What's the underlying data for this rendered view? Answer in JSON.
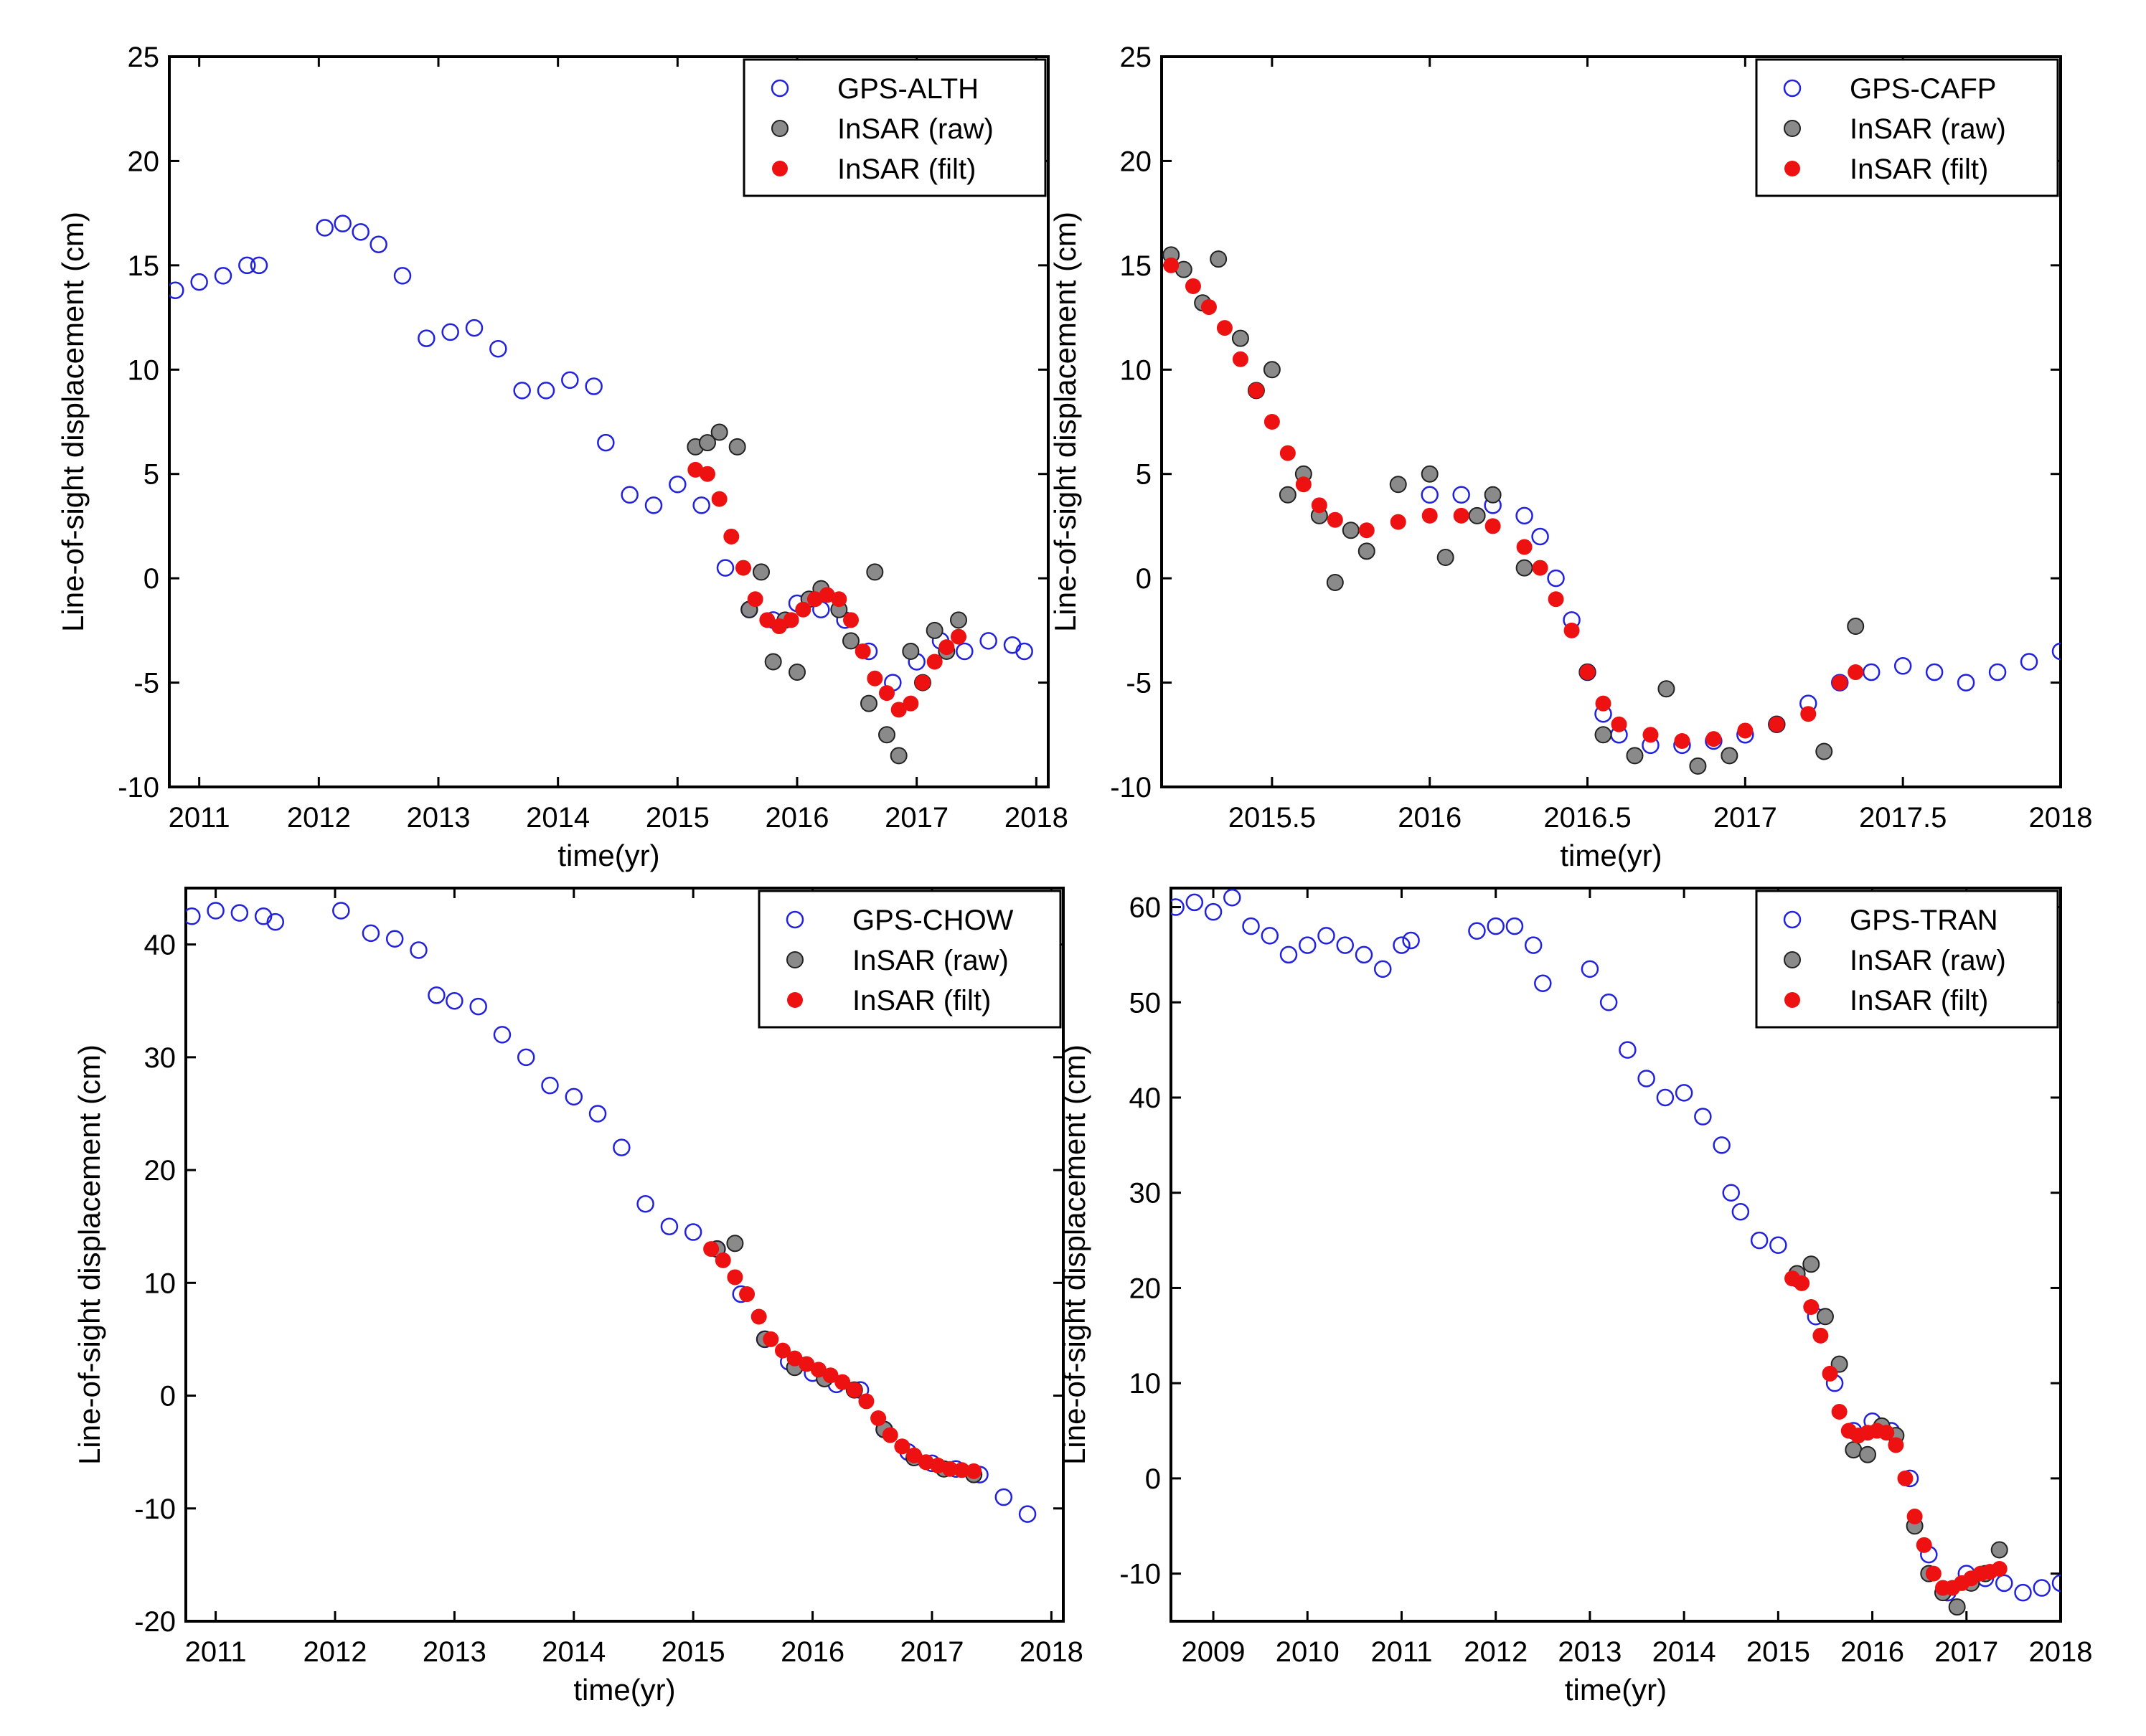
{
  "figure": {
    "colors": {
      "gps": "#2222dd",
      "raw_fill": "#8a8a8a",
      "raw_stroke": "#222222",
      "filt": "#ee1111",
      "axis": "#000000"
    }
  },
  "chart_data": [
    {
      "type": "scatter",
      "xlabel": "time(yr)",
      "ylabel": "Line-of-sight displacement (cm)",
      "xlim": [
        2010.75,
        2018.1
      ],
      "ylim": [
        -10,
        25
      ],
      "xticks": [
        2011,
        2012,
        2013,
        2014,
        2015,
        2016,
        2017,
        2018
      ],
      "yticks": [
        -10,
        -5,
        0,
        5,
        10,
        15,
        20,
        25
      ],
      "legend_position": "top-right",
      "series": [
        {
          "name": "GPS-ALTH",
          "marker": "open-circle",
          "color": "#2222dd",
          "x": [
            2010.8,
            2011.0,
            2011.2,
            2011.4,
            2011.5,
            2012.05,
            2012.2,
            2012.35,
            2012.5,
            2012.7,
            2012.9,
            2013.1,
            2013.3,
            2013.5,
            2013.7,
            2013.9,
            2014.1,
            2014.3,
            2014.4,
            2014.6,
            2014.8,
            2015.0,
            2015.2,
            2015.4,
            2015.6,
            2015.8,
            2016.0,
            2016.2,
            2016.4,
            2016.6,
            2016.8,
            2017.0,
            2017.2,
            2017.4,
            2017.6,
            2017.8,
            2017.9
          ],
          "y": [
            13.8,
            14.2,
            14.5,
            15.0,
            15.0,
            16.8,
            17.0,
            16.6,
            16.0,
            14.5,
            11.5,
            11.8,
            12.0,
            11.0,
            9.0,
            9.0,
            9.5,
            9.2,
            6.5,
            4.0,
            3.5,
            4.5,
            3.5,
            0.5,
            -1.5,
            -2.0,
            -1.2,
            -1.5,
            -2.0,
            -3.5,
            -5.0,
            -4.0,
            -3.0,
            -3.5,
            -3.0,
            -3.2,
            -3.5
          ]
        },
        {
          "name": "InSAR (raw)",
          "marker": "filled-circle",
          "color": "#8a8a8a",
          "x": [
            2015.15,
            2015.25,
            2015.35,
            2015.5,
            2015.6,
            2015.7,
            2015.8,
            2015.9,
            2016.0,
            2016.1,
            2016.2,
            2016.35,
            2016.45,
            2016.6,
            2016.65,
            2016.75,
            2016.85,
            2016.95,
            2017.05,
            2017.15,
            2017.25,
            2017.35
          ],
          "y": [
            6.3,
            6.5,
            7.0,
            6.3,
            -1.5,
            0.3,
            -4.0,
            -2.0,
            -4.5,
            -1.0,
            -0.5,
            -1.5,
            -3.0,
            -6.0,
            0.3,
            -7.5,
            -8.5,
            -3.5,
            -5.0,
            -2.5,
            -3.5,
            -2.0
          ]
        },
        {
          "name": "InSAR (filt)",
          "marker": "filled-circle",
          "color": "#ee1111",
          "x": [
            2015.15,
            2015.25,
            2015.35,
            2015.45,
            2015.55,
            2015.65,
            2015.75,
            2015.85,
            2015.95,
            2016.05,
            2016.15,
            2016.25,
            2016.35,
            2016.45,
            2016.55,
            2016.65,
            2016.75,
            2016.85,
            2016.95,
            2017.05,
            2017.15,
            2017.25,
            2017.35
          ],
          "y": [
            5.2,
            5.0,
            3.8,
            2.0,
            0.5,
            -1.0,
            -2.0,
            -2.3,
            -2.0,
            -1.5,
            -1.0,
            -0.8,
            -1.0,
            -2.0,
            -3.5,
            -4.8,
            -5.5,
            -6.3,
            -6.0,
            -5.0,
            -4.0,
            -3.3,
            -2.8
          ]
        }
      ]
    },
    {
      "type": "scatter",
      "xlabel": "time(yr)",
      "ylabel": "Line-of-sight displacement (cm)",
      "xlim": [
        2015.15,
        2018.0
      ],
      "ylim": [
        -10,
        25
      ],
      "xticks": [
        2015.5,
        2016,
        2016.5,
        2017,
        2017.5,
        2018
      ],
      "yticks": [
        -10,
        -5,
        0,
        5,
        10,
        15,
        20,
        25
      ],
      "legend_position": "top-right",
      "series": [
        {
          "name": "GPS-CAFP",
          "marker": "open-circle",
          "color": "#2222dd",
          "x": [
            2016.0,
            2016.1,
            2016.2,
            2016.3,
            2016.35,
            2016.4,
            2016.45,
            2016.5,
            2016.55,
            2016.6,
            2016.7,
            2016.8,
            2016.9,
            2017.0,
            2017.1,
            2017.2,
            2017.3,
            2017.4,
            2017.5,
            2017.6,
            2017.7,
            2017.8,
            2017.9,
            2018.0
          ],
          "y": [
            4.0,
            4.0,
            3.5,
            3.0,
            2.0,
            0.0,
            -2.0,
            -4.5,
            -6.5,
            -7.5,
            -8.0,
            -8.0,
            -7.8,
            -7.5,
            -7.0,
            -6.0,
            -5.0,
            -4.5,
            -4.2,
            -4.5,
            -5.0,
            -4.5,
            -4.0,
            -3.5
          ]
        },
        {
          "name": "InSAR (raw)",
          "marker": "filled-circle",
          "color": "#8a8a8a",
          "x": [
            2015.18,
            2015.22,
            2015.28,
            2015.33,
            2015.4,
            2015.45,
            2015.5,
            2015.55,
            2015.6,
            2015.65,
            2015.7,
            2015.75,
            2015.8,
            2015.9,
            2016.0,
            2016.05,
            2016.15,
            2016.2,
            2016.3,
            2016.5,
            2016.55,
            2016.65,
            2016.75,
            2016.85,
            2016.95,
            2017.1,
            2017.25,
            2017.35
          ],
          "y": [
            15.5,
            14.8,
            13.2,
            15.3,
            11.5,
            9.0,
            10.0,
            4.0,
            5.0,
            3.0,
            -0.2,
            2.3,
            1.3,
            4.5,
            5.0,
            1.0,
            3.0,
            4.0,
            0.5,
            -4.5,
            -7.5,
            -8.5,
            -5.3,
            -9.0,
            -8.5,
            -7.0,
            -8.3,
            -2.3
          ]
        },
        {
          "name": "InSAR (filt)",
          "marker": "filled-circle",
          "color": "#ee1111",
          "x": [
            2015.18,
            2015.25,
            2015.3,
            2015.35,
            2015.4,
            2015.45,
            2015.5,
            2015.55,
            2015.6,
            2015.65,
            2015.7,
            2015.8,
            2015.9,
            2016.0,
            2016.1,
            2016.2,
            2016.3,
            2016.35,
            2016.4,
            2016.45,
            2016.5,
            2016.55,
            2016.6,
            2016.7,
            2016.8,
            2016.9,
            2017.0,
            2017.1,
            2017.2,
            2017.3,
            2017.35
          ],
          "y": [
            15.0,
            14.0,
            13.0,
            12.0,
            10.5,
            9.0,
            7.5,
            6.0,
            4.5,
            3.5,
            2.8,
            2.3,
            2.7,
            3.0,
            3.0,
            2.5,
            1.5,
            0.5,
            -1.0,
            -2.5,
            -4.5,
            -6.0,
            -7.0,
            -7.5,
            -7.8,
            -7.7,
            -7.3,
            -7.0,
            -6.5,
            -5.0,
            -4.5
          ]
        }
      ]
    },
    {
      "type": "scatter",
      "xlabel": "time(yr)",
      "ylabel": "Line-of-sight displacement (cm)",
      "xlim": [
        2010.75,
        2018.1
      ],
      "ylim": [
        -20,
        45
      ],
      "xticks": [
        2011,
        2012,
        2013,
        2014,
        2015,
        2016,
        2017,
        2018
      ],
      "yticks": [
        -20,
        -10,
        0,
        10,
        20,
        30,
        40
      ],
      "legend_position": "top-right",
      "series": [
        {
          "name": "GPS-CHOW",
          "marker": "open-circle",
          "color": "#2222dd",
          "x": [
            2010.8,
            2011.0,
            2011.2,
            2011.4,
            2011.5,
            2012.05,
            2012.3,
            2012.5,
            2012.7,
            2012.85,
            2013.0,
            2013.2,
            2013.4,
            2013.6,
            2013.8,
            2014.0,
            2014.2,
            2014.4,
            2014.6,
            2014.8,
            2015.0,
            2015.2,
            2015.4,
            2015.6,
            2015.8,
            2016.0,
            2016.2,
            2016.4,
            2016.6,
            2016.8,
            2017.0,
            2017.2,
            2017.4,
            2017.6,
            2017.8
          ],
          "y": [
            42.5,
            43.0,
            42.8,
            42.5,
            42.0,
            43.0,
            41.0,
            40.5,
            39.5,
            35.5,
            35.0,
            34.5,
            32.0,
            30.0,
            27.5,
            26.5,
            25.0,
            22.0,
            17.0,
            15.0,
            14.5,
            13.0,
            9.0,
            5.0,
            3.0,
            2.0,
            1.0,
            0.5,
            -3.0,
            -5.0,
            -6.0,
            -6.5,
            -7.0,
            -9.0,
            -10.5
          ]
        },
        {
          "name": "InSAR (raw)",
          "marker": "filled-circle",
          "color": "#8a8a8a",
          "x": [
            2015.2,
            2015.35,
            2015.6,
            2015.85,
            2016.1,
            2016.35,
            2016.6,
            2016.85,
            2017.1,
            2017.35
          ],
          "y": [
            13.0,
            13.5,
            5.0,
            2.5,
            1.5,
            0.5,
            -3.0,
            -5.5,
            -6.5,
            -7.0
          ]
        },
        {
          "name": "InSAR (filt)",
          "marker": "filled-circle",
          "color": "#ee1111",
          "x": [
            2015.15,
            2015.25,
            2015.35,
            2015.45,
            2015.55,
            2015.65,
            2015.75,
            2015.85,
            2015.95,
            2016.05,
            2016.15,
            2016.25,
            2016.35,
            2016.45,
            2016.55,
            2016.65,
            2016.75,
            2016.85,
            2016.95,
            2017.05,
            2017.15,
            2017.25,
            2017.35
          ],
          "y": [
            13.0,
            12.0,
            10.5,
            9.0,
            7.0,
            5.0,
            4.0,
            3.3,
            2.8,
            2.3,
            1.8,
            1.2,
            0.5,
            -0.5,
            -2.0,
            -3.5,
            -4.5,
            -5.3,
            -5.9,
            -6.2,
            -6.5,
            -6.6,
            -6.7
          ]
        }
      ]
    },
    {
      "type": "scatter",
      "xlabel": "time(yr)",
      "ylabel": "Line-of-sight displacement (cm)",
      "xlim": [
        2008.55,
        2018.0
      ],
      "ylim": [
        -15,
        62
      ],
      "xticks": [
        2009,
        2010,
        2011,
        2012,
        2013,
        2014,
        2015,
        2016,
        2017,
        2018
      ],
      "yticks": [
        -10,
        0,
        10,
        20,
        30,
        40,
        50,
        60
      ],
      "legend_position": "top-right",
      "series": [
        {
          "name": "GPS-TRAN",
          "marker": "open-circle",
          "color": "#2222dd",
          "x": [
            2008.6,
            2008.8,
            2009.0,
            2009.2,
            2009.4,
            2009.6,
            2009.8,
            2010.0,
            2010.2,
            2010.4,
            2010.6,
            2010.8,
            2011.0,
            2011.1,
            2011.8,
            2012.0,
            2012.2,
            2012.4,
            2012.5,
            2013.0,
            2013.2,
            2013.4,
            2013.6,
            2013.8,
            2014.0,
            2014.2,
            2014.4,
            2014.5,
            2014.6,
            2014.8,
            2015.0,
            2015.2,
            2015.4,
            2015.6,
            2015.8,
            2016.0,
            2016.2,
            2016.4,
            2016.6,
            2016.8,
            2017.0,
            2017.2,
            2017.4,
            2017.6,
            2017.8,
            2018.0
          ],
          "y": [
            60.0,
            60.5,
            59.5,
            61.0,
            58.0,
            57.0,
            55.0,
            56.0,
            57.0,
            56.0,
            55.0,
            53.5,
            56.0,
            56.5,
            57.5,
            58.0,
            58.0,
            56.0,
            52.0,
            53.5,
            50.0,
            45.0,
            42.0,
            40.0,
            40.5,
            38.0,
            35.0,
            30.0,
            28.0,
            25.0,
            24.5,
            21.0,
            17.0,
            10.0,
            5.0,
            6.0,
            5.0,
            0.0,
            -8.0,
            -12.0,
            -10.0,
            -10.5,
            -11.0,
            -12.0,
            -11.5,
            -11.0
          ]
        },
        {
          "name": "InSAR (raw)",
          "marker": "filled-circle",
          "color": "#8a8a8a",
          "x": [
            2015.2,
            2015.35,
            2015.5,
            2015.65,
            2015.8,
            2015.95,
            2016.1,
            2016.25,
            2016.45,
            2016.6,
            2016.75,
            2016.9,
            2017.05,
            2017.2,
            2017.35
          ],
          "y": [
            21.5,
            22.5,
            17.0,
            12.0,
            3.0,
            2.5,
            5.5,
            4.5,
            -5.0,
            -10.0,
            -12.0,
            -13.5,
            -11.0,
            -10.0,
            -7.5
          ]
        },
        {
          "name": "InSAR (filt)",
          "marker": "filled-circle",
          "color": "#ee1111",
          "x": [
            2015.15,
            2015.25,
            2015.35,
            2015.45,
            2015.55,
            2015.65,
            2015.75,
            2015.85,
            2015.95,
            2016.05,
            2016.15,
            2016.25,
            2016.35,
            2016.45,
            2016.55,
            2016.65,
            2016.75,
            2016.85,
            2016.95,
            2017.05,
            2017.15,
            2017.25,
            2017.35
          ],
          "y": [
            21.0,
            20.5,
            18.0,
            15.0,
            11.0,
            7.0,
            5.0,
            4.5,
            4.8,
            5.0,
            4.8,
            3.5,
            0.0,
            -4.0,
            -7.0,
            -10.0,
            -11.5,
            -11.5,
            -11.0,
            -10.5,
            -10.0,
            -9.8,
            -9.5
          ]
        }
      ]
    }
  ]
}
